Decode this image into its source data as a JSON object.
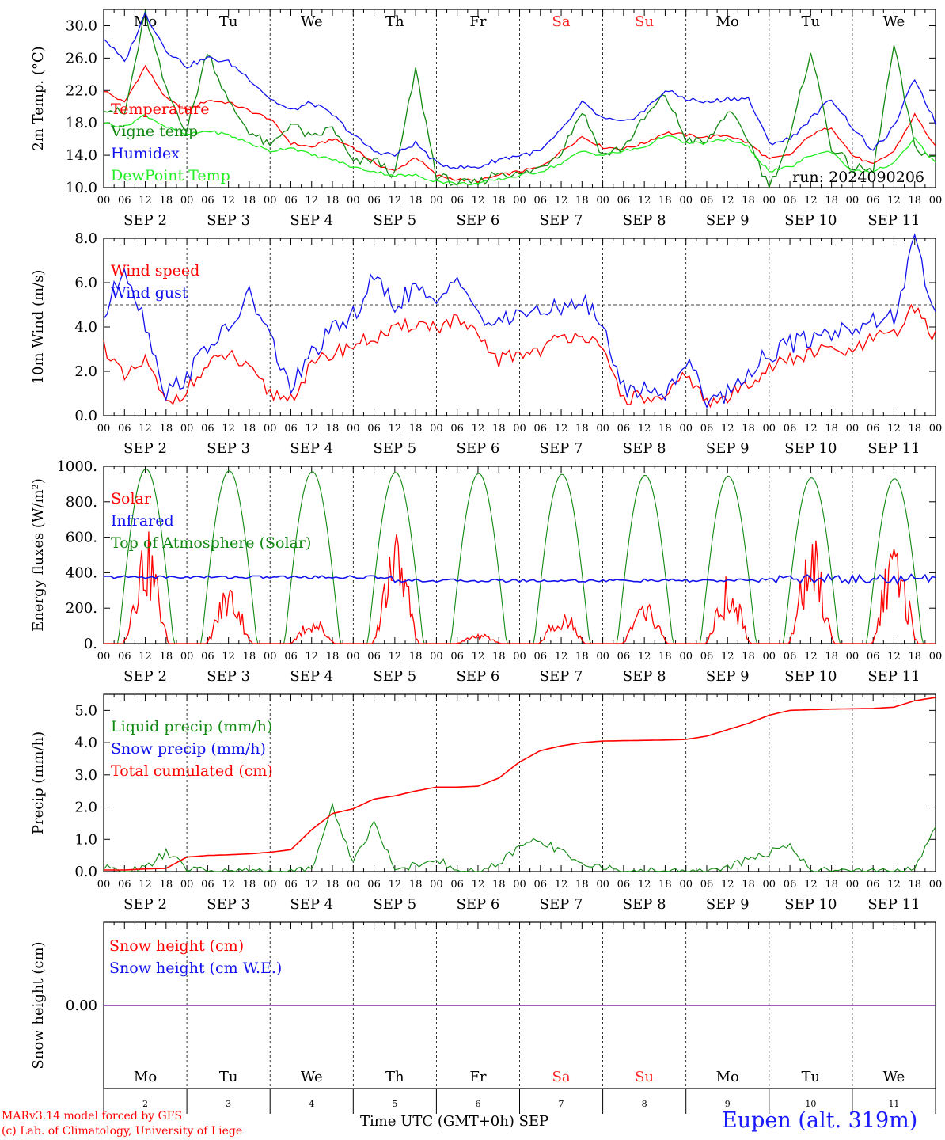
{
  "colors": {
    "red": "#ff0000",
    "green": "#118811",
    "blue": "#1111ee",
    "lightgreen": "#22ee22",
    "purple": "#7a2a9a",
    "weekend": "#ff2020"
  },
  "days": [
    "Mo",
    "Tu",
    "We",
    "Th",
    "Fr",
    "Sa",
    "Su",
    "Mo",
    "Tu",
    "We"
  ],
  "weekend_flags": [
    false,
    false,
    false,
    false,
    false,
    true,
    true,
    false,
    false,
    false
  ],
  "date_labels": [
    "SEP  2",
    "SEP  3",
    "SEP  4",
    "SEP  5",
    "SEP  6",
    "SEP  7",
    "SEP  8",
    "SEP  9",
    "SEP 10",
    "SEP 11"
  ],
  "hour_labels": [
    "00",
    "06",
    "12",
    "18"
  ],
  "bottom_days": [
    "2",
    "3",
    "4",
    "5",
    "6",
    "7",
    "8",
    "9",
    "10",
    "11"
  ],
  "footer": {
    "credit1": "MARv3.14 model forced by GFS",
    "credit2": "(c) Lab. of Climatology, University of Liege",
    "x_title": "Time UTC (GMT+0h) SEP",
    "station": "Eupen (alt. 319m)"
  },
  "chart_data": [
    {
      "type": "line",
      "id": "temp",
      "ylabel": "2m Temp. (°C)",
      "ylim": [
        10,
        32
      ],
      "yticks": [
        10,
        14,
        18,
        22,
        26,
        30
      ],
      "ytick_labels": [
        "10.0",
        "14.0",
        "18.0",
        "22.0",
        "26.0",
        "30.0"
      ],
      "run_label": "run: 2024090206",
      "x_hours": [
        0,
        6,
        12,
        18,
        24,
        30,
        36,
        42,
        48,
        54,
        60,
        66,
        72,
        78,
        84,
        90,
        96,
        102,
        108,
        114,
        120,
        126,
        132,
        138,
        144,
        150,
        156,
        162,
        168,
        174,
        180,
        186,
        192,
        198,
        204,
        210,
        216,
        222,
        228,
        234,
        240
      ],
      "series": [
        {
          "name": "Temperature",
          "color": "red",
          "values": [
            22.0,
            20.5,
            25.0,
            21.0,
            19.5,
            20.8,
            20.5,
            19.5,
            18.5,
            15.5,
            15.0,
            16.0,
            15.0,
            13.0,
            12.0,
            13.8,
            11.5,
            11.0,
            10.8,
            11.5,
            12.0,
            12.5,
            14.5,
            16.3,
            15.0,
            14.8,
            15.5,
            16.8,
            16.5,
            16.2,
            16.5,
            15.5,
            13.5,
            14.0,
            16.5,
            17.5,
            14.0,
            12.8,
            14.5,
            19.0,
            15.0
          ]
        },
        {
          "name": "Vigne temp",
          "color": "green",
          "values": [
            20.0,
            19.0,
            31.5,
            22.0,
            17.0,
            27.0,
            20.5,
            17.0,
            15.0,
            18.0,
            16.0,
            17.5,
            13.0,
            13.5,
            11.5,
            24.5,
            11.5,
            10.5,
            10.5,
            12.0,
            11.5,
            12.5,
            14.5,
            19.5,
            14.0,
            15.0,
            18.5,
            21.5,
            16.0,
            15.5,
            19.5,
            16.0,
            10.0,
            16.0,
            27.0,
            15.0,
            12.5,
            12.0,
            27.5,
            15.0,
            13.5
          ]
        },
        {
          "name": "Humidex",
          "color": "blue",
          "values": [
            28.5,
            25.5,
            31.5,
            27.0,
            25.0,
            26.0,
            25.5,
            23.5,
            21.0,
            19.5,
            20.5,
            19.0,
            16.5,
            14.5,
            14.0,
            15.5,
            13.0,
            12.5,
            12.5,
            13.5,
            14.0,
            14.5,
            17.0,
            20.5,
            18.5,
            18.0,
            19.5,
            22.0,
            21.0,
            20.5,
            21.0,
            21.0,
            15.5,
            16.0,
            18.5,
            21.0,
            17.5,
            14.5,
            17.5,
            23.5,
            18.0
          ]
        },
        {
          "name": "DewPoint Temp",
          "color": "lightgreen",
          "values": [
            18.0,
            17.5,
            19.0,
            17.5,
            16.5,
            17.0,
            16.5,
            15.5,
            14.5,
            15.0,
            14.0,
            13.5,
            12.5,
            12.0,
            11.5,
            11.5,
            10.8,
            10.5,
            10.5,
            11.0,
            11.5,
            12.0,
            13.0,
            14.5,
            14.0,
            14.5,
            15.0,
            16.5,
            15.5,
            15.5,
            16.0,
            15.0,
            12.0,
            12.5,
            14.0,
            14.5,
            12.0,
            12.0,
            13.0,
            16.0,
            13.0
          ]
        }
      ]
    },
    {
      "type": "line",
      "id": "wind",
      "ylabel": "10m Wind (m/s)",
      "ylim": [
        0,
        8
      ],
      "yticks": [
        0,
        2,
        4,
        6,
        8
      ],
      "ytick_labels": [
        "0.0",
        "2.0",
        "4.0",
        "6.0",
        "8.0"
      ],
      "ref_line": 5.0,
      "x_hours": [
        0,
        6,
        12,
        18,
        24,
        30,
        36,
        42,
        48,
        54,
        60,
        66,
        72,
        78,
        84,
        90,
        96,
        102,
        108,
        114,
        120,
        126,
        132,
        138,
        144,
        150,
        156,
        162,
        168,
        174,
        180,
        186,
        192,
        198,
        204,
        210,
        216,
        222,
        228,
        234,
        240
      ],
      "series": [
        {
          "name": "Wind speed",
          "color": "red",
          "values": [
            3.2,
            1.6,
            2.5,
            0.5,
            1.2,
            2.2,
            2.8,
            2.0,
            1.0,
            0.8,
            2.2,
            2.8,
            3.2,
            3.5,
            3.8,
            4.2,
            4.0,
            4.3,
            3.5,
            2.5,
            2.8,
            3.0,
            3.5,
            3.8,
            2.8,
            0.8,
            0.8,
            0.6,
            2.0,
            0.5,
            0.8,
            1.5,
            2.2,
            2.5,
            2.8,
            3.0,
            2.8,
            3.5,
            3.6,
            4.9,
            3.5
          ]
        },
        {
          "name": "Wind gust",
          "color": "blue",
          "values": [
            4.4,
            6.8,
            4.2,
            1.0,
            1.8,
            3.2,
            3.8,
            5.5,
            3.5,
            1.2,
            2.8,
            3.8,
            4.5,
            6.2,
            5.0,
            5.8,
            4.8,
            6.6,
            4.5,
            4.0,
            4.8,
            4.5,
            5.0,
            5.2,
            4.0,
            1.2,
            1.2,
            1.0,
            2.5,
            0.8,
            1.0,
            2.0,
            2.8,
            3.2,
            3.5,
            3.8,
            4.0,
            4.2,
            4.5,
            7.8,
            4.5
          ]
        }
      ]
    },
    {
      "type": "line",
      "id": "energy",
      "ylabel": "Energy fluxes (W/m²)",
      "ylim": [
        0,
        1000
      ],
      "yticks": [
        0,
        200,
        400,
        600,
        800,
        1000
      ],
      "ytick_labels": [
        "0.",
        "200.",
        "400.",
        "600.",
        "800.",
        "1000."
      ],
      "series": [
        {
          "name": "Solar",
          "color": "red",
          "peaks": [
            650,
            360,
            160,
            680,
            60,
            220,
            250,
            390,
            640,
            600
          ]
        },
        {
          "name": "Infrared",
          "color": "blue",
          "level_start": 375,
          "level_mid": 355,
          "level_end": 365
        },
        {
          "name": "Top of Atmosphere (Solar)",
          "color": "green",
          "peaks": [
            985,
            975,
            970,
            965,
            960,
            955,
            950,
            945,
            935,
            930
          ]
        }
      ]
    },
    {
      "type": "line",
      "id": "precip",
      "ylabel": "Precip (mm/h)",
      "ylim": [
        0,
        5.5
      ],
      "yticks": [
        0,
        1,
        2,
        3,
        4,
        5
      ],
      "ytick_labels": [
        "0.0",
        "1.0",
        "2.0",
        "3.0",
        "4.0",
        "5.0"
      ],
      "x_hours": [
        0,
        6,
        12,
        18,
        24,
        30,
        36,
        42,
        48,
        54,
        60,
        66,
        72,
        78,
        84,
        90,
        96,
        102,
        108,
        114,
        120,
        126,
        132,
        138,
        144,
        150,
        156,
        162,
        168,
        174,
        180,
        186,
        192,
        198,
        204,
        210,
        216,
        222,
        228,
        234,
        240
      ],
      "series": [
        {
          "name": "Liquid precip (mm/h)",
          "color": "green",
          "values": [
            0.1,
            0.0,
            0.1,
            0.6,
            0.1,
            0.0,
            0.0,
            0.0,
            0.0,
            0.0,
            0.1,
            2.0,
            0.3,
            1.5,
            0.1,
            0.2,
            0.4,
            0.0,
            0.0,
            0.2,
            0.8,
            1.0,
            0.6,
            0.3,
            0.1,
            0.0,
            0.0,
            0.0,
            0.0,
            0.0,
            0.1,
            0.4,
            0.6,
            0.8,
            0.1,
            0.0,
            0.0,
            0.0,
            0.0,
            0.1,
            1.4
          ]
        },
        {
          "name": "Snow precip (mm/h)",
          "color": "blue",
          "values": []
        },
        {
          "name": "Total cumulated (cm)",
          "color": "red",
          "values": [
            0.05,
            0.05,
            0.08,
            0.1,
            0.45,
            0.5,
            0.52,
            0.55,
            0.6,
            0.68,
            1.3,
            1.8,
            1.95,
            2.25,
            2.35,
            2.5,
            2.62,
            2.62,
            2.65,
            2.9,
            3.4,
            3.75,
            3.9,
            4.0,
            4.05,
            4.06,
            4.07,
            4.08,
            4.1,
            4.2,
            4.4,
            4.6,
            4.85,
            5.0,
            5.02,
            5.04,
            5.05,
            5.06,
            5.1,
            5.3,
            5.4
          ]
        }
      ]
    },
    {
      "type": "line",
      "id": "snow",
      "ylabel": "Snow height (cm)",
      "ytick_labels": [
        "0.00"
      ],
      "series": [
        {
          "name": "Snow height (cm)",
          "color": "red",
          "values": [
            0
          ]
        },
        {
          "name": "Snow height (cm W.E.)",
          "color": "blue",
          "values": [
            0
          ]
        }
      ]
    }
  ]
}
